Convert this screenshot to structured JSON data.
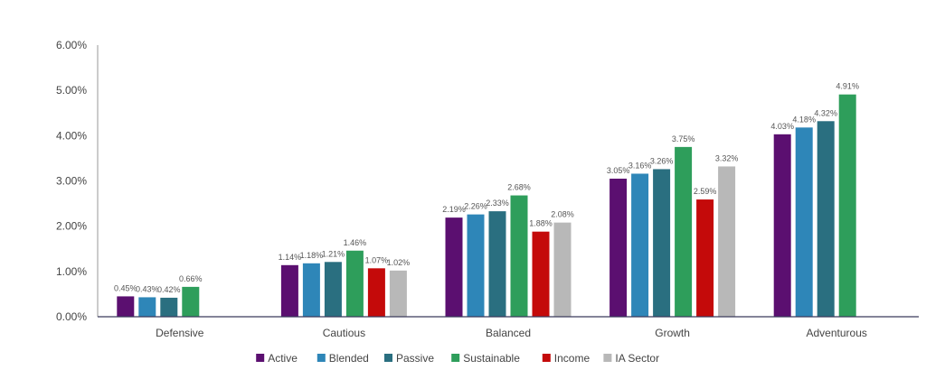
{
  "chart_data": {
    "type": "bar",
    "title": "",
    "xlabel": "",
    "ylabel": "",
    "ylim": [
      0,
      6
    ],
    "yticks": [
      "0.00%",
      "1.00%",
      "2.00%",
      "3.00%",
      "4.00%",
      "5.00%",
      "6.00%"
    ],
    "categories": [
      "Defensive",
      "Cautious",
      "Balanced",
      "Growth",
      "Adventurous"
    ],
    "grid": false,
    "legend_position": "bottom",
    "series": [
      {
        "name": "Active",
        "color": "#5b0f70",
        "values": [
          0.45,
          1.14,
          2.19,
          3.05,
          4.03
        ],
        "labels": [
          "0.45%",
          "1.14%",
          "2.19%",
          "3.05%",
          "4.03%"
        ]
      },
      {
        "name": "Blended",
        "color": "#2e86b8",
        "values": [
          0.43,
          1.18,
          2.26,
          3.16,
          4.18
        ],
        "labels": [
          "0.43%",
          "1.18%",
          "2.26%",
          "3.16%",
          "4.18%"
        ]
      },
      {
        "name": "Passive",
        "color": "#2a6f80",
        "values": [
          0.42,
          1.21,
          2.33,
          3.26,
          4.32
        ],
        "labels": [
          "0.42%",
          "1.21%",
          "2.33%",
          "3.26%",
          "4.32%"
        ]
      },
      {
        "name": "Sustainable",
        "color": "#2e9e5b",
        "values": [
          0.66,
          1.46,
          2.68,
          3.75,
          4.91
        ],
        "labels": [
          "0.66%",
          "1.46%",
          "2.68%",
          "3.75%",
          "4.91%"
        ]
      },
      {
        "name": "Income",
        "color": "#c40a0a",
        "values": [
          null,
          1.07,
          1.88,
          2.59,
          null
        ],
        "labels": [
          null,
          "1.07%",
          "1.88%",
          "2.59%",
          null
        ]
      },
      {
        "name": "IA Sector",
        "color": "#b8b8b8",
        "values": [
          null,
          1.02,
          2.08,
          3.32,
          null
        ],
        "labels": [
          null,
          "1.02%",
          "2.08%",
          "3.32%",
          null
        ]
      }
    ]
  }
}
